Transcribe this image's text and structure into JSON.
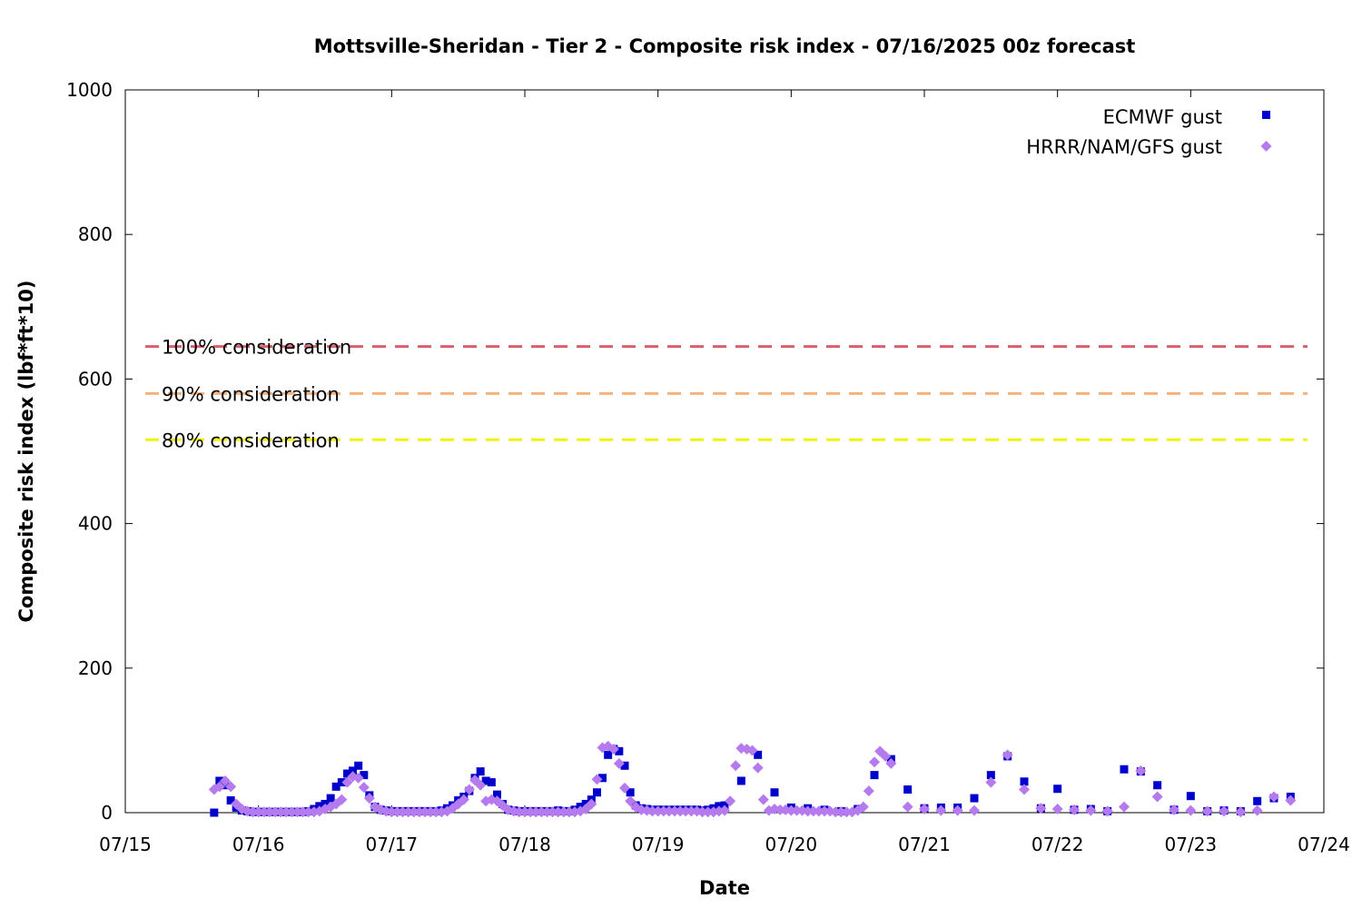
{
  "chart_data": {
    "type": "scatter",
    "title": "Mottsville-Sheridan - Tier 2 - Composite risk index - 07/16/2025 00z forecast",
    "xlabel": "Date",
    "ylabel": "Composite risk index (lbf*ft*10)",
    "x_tick_labels": [
      "07/15",
      "07/16",
      "07/17",
      "07/18",
      "07/19",
      "07/20",
      "07/21",
      "07/22",
      "07/23",
      "07/24"
    ],
    "x_tick_values": [
      0,
      1,
      2,
      3,
      4,
      5,
      6,
      7,
      8,
      9
    ],
    "x_values_meaning": "days from 07/15 00z",
    "xlim": [
      0,
      9
    ],
    "y_tick_labels": [
      "0",
      "200",
      "400",
      "600",
      "800",
      "1000"
    ],
    "y_tick_values": [
      0,
      200,
      400,
      600,
      800,
      1000
    ],
    "ylim": [
      0,
      1000
    ],
    "grid": false,
    "legend_position": "top-right",
    "thresholds": [
      {
        "label": "100% consideration",
        "value": 645,
        "color": "#d95f6e"
      },
      {
        "label": "90% consideration",
        "value": 580,
        "color": "#f5b27a"
      },
      {
        "label": "80% consideration",
        "value": 516,
        "color": "#f2f20a"
      }
    ],
    "series": [
      {
        "name": "ECMWF gust",
        "marker": "square",
        "color": "#0000cc",
        "points": [
          [
            0.667,
            0
          ],
          [
            0.708,
            44
          ],
          [
            0.75,
            38
          ],
          [
            0.792,
            17
          ],
          [
            0.833,
            7
          ],
          [
            0.875,
            3
          ],
          [
            0.917,
            2
          ],
          [
            0.958,
            1
          ],
          [
            1.0,
            1
          ],
          [
            1.042,
            1
          ],
          [
            1.083,
            1
          ],
          [
            1.125,
            1
          ],
          [
            1.167,
            1
          ],
          [
            1.208,
            1
          ],
          [
            1.25,
            1
          ],
          [
            1.292,
            1
          ],
          [
            1.333,
            1
          ],
          [
            1.375,
            2
          ],
          [
            1.417,
            5
          ],
          [
            1.458,
            9
          ],
          [
            1.5,
            12
          ],
          [
            1.542,
            20
          ],
          [
            1.583,
            36
          ],
          [
            1.625,
            42
          ],
          [
            1.667,
            54
          ],
          [
            1.708,
            58
          ],
          [
            1.75,
            65
          ],
          [
            1.792,
            52
          ],
          [
            1.833,
            24
          ],
          [
            1.875,
            8
          ],
          [
            1.917,
            4
          ],
          [
            1.958,
            3
          ],
          [
            2.0,
            2
          ],
          [
            2.042,
            2
          ],
          [
            2.083,
            2
          ],
          [
            2.125,
            2
          ],
          [
            2.167,
            2
          ],
          [
            2.208,
            2
          ],
          [
            2.25,
            2
          ],
          [
            2.292,
            2
          ],
          [
            2.333,
            2
          ],
          [
            2.375,
            3
          ],
          [
            2.417,
            6
          ],
          [
            2.458,
            10
          ],
          [
            2.5,
            17
          ],
          [
            2.542,
            22
          ],
          [
            2.583,
            30
          ],
          [
            2.625,
            48
          ],
          [
            2.667,
            57
          ],
          [
            2.708,
            44
          ],
          [
            2.75,
            42
          ],
          [
            2.792,
            25
          ],
          [
            2.833,
            12
          ],
          [
            2.875,
            4
          ],
          [
            2.917,
            3
          ],
          [
            2.958,
            2
          ],
          [
            3.0,
            2
          ],
          [
            3.042,
            2
          ],
          [
            3.083,
            2
          ],
          [
            3.125,
            2
          ],
          [
            3.167,
            2
          ],
          [
            3.208,
            2
          ],
          [
            3.25,
            3
          ],
          [
            3.292,
            2
          ],
          [
            3.333,
            2
          ],
          [
            3.375,
            4
          ],
          [
            3.417,
            8
          ],
          [
            3.458,
            12
          ],
          [
            3.5,
            18
          ],
          [
            3.542,
            28
          ],
          [
            3.583,
            48
          ],
          [
            3.625,
            80
          ],
          [
            3.667,
            88
          ],
          [
            3.708,
            85
          ],
          [
            3.75,
            65
          ],
          [
            3.792,
            28
          ],
          [
            3.833,
            10
          ],
          [
            3.875,
            6
          ],
          [
            3.917,
            5
          ],
          [
            3.958,
            4
          ],
          [
            4.0,
            4
          ],
          [
            4.042,
            4
          ],
          [
            4.083,
            4
          ],
          [
            4.125,
            4
          ],
          [
            4.167,
            4
          ],
          [
            4.208,
            4
          ],
          [
            4.25,
            4
          ],
          [
            4.292,
            4
          ],
          [
            4.333,
            3
          ],
          [
            4.375,
            4
          ],
          [
            4.417,
            6
          ],
          [
            4.458,
            9
          ],
          [
            4.5,
            10
          ],
          [
            4.625,
            44
          ],
          [
            4.75,
            80
          ],
          [
            4.875,
            28
          ],
          [
            5.0,
            7
          ],
          [
            5.125,
            6
          ],
          [
            5.25,
            4
          ],
          [
            5.375,
            2
          ],
          [
            5.5,
            5
          ],
          [
            5.625,
            52
          ],
          [
            5.75,
            74
          ],
          [
            5.875,
            32
          ],
          [
            6.0,
            6
          ],
          [
            6.125,
            7
          ],
          [
            6.25,
            7
          ],
          [
            6.375,
            20
          ],
          [
            6.5,
            52
          ],
          [
            6.625,
            78
          ],
          [
            6.75,
            43
          ],
          [
            6.875,
            6
          ],
          [
            7.0,
            33
          ],
          [
            7.125,
            4
          ],
          [
            7.25,
            5
          ],
          [
            7.375,
            2
          ],
          [
            7.5,
            60
          ],
          [
            7.625,
            57
          ],
          [
            7.75,
            38
          ],
          [
            7.875,
            4
          ],
          [
            8.0,
            23
          ],
          [
            8.125,
            2
          ],
          [
            8.25,
            3
          ],
          [
            8.375,
            2
          ],
          [
            8.5,
            16
          ],
          [
            8.625,
            20
          ],
          [
            8.75,
            22
          ]
        ]
      },
      {
        "name": "HRRR/NAM/GFS gust",
        "marker": "diamond",
        "color": "#b57bee",
        "points": [
          [
            0.667,
            32
          ],
          [
            0.708,
            36
          ],
          [
            0.75,
            44
          ],
          [
            0.792,
            36
          ],
          [
            0.833,
            12
          ],
          [
            0.875,
            5
          ],
          [
            0.917,
            2
          ],
          [
            0.958,
            1
          ],
          [
            1.0,
            1
          ],
          [
            1.042,
            1
          ],
          [
            1.083,
            1
          ],
          [
            1.125,
            1
          ],
          [
            1.167,
            1
          ],
          [
            1.208,
            1
          ],
          [
            1.25,
            1
          ],
          [
            1.292,
            1
          ],
          [
            1.333,
            1
          ],
          [
            1.375,
            1
          ],
          [
            1.417,
            1
          ],
          [
            1.458,
            2
          ],
          [
            1.5,
            5
          ],
          [
            1.542,
            8
          ],
          [
            1.583,
            12
          ],
          [
            1.625,
            18
          ],
          [
            1.667,
            42
          ],
          [
            1.708,
            50
          ],
          [
            1.75,
            48
          ],
          [
            1.792,
            35
          ],
          [
            1.833,
            20
          ],
          [
            1.875,
            8
          ],
          [
            1.917,
            4
          ],
          [
            1.958,
            2
          ],
          [
            2.0,
            1
          ],
          [
            2.042,
            1
          ],
          [
            2.083,
            1
          ],
          [
            2.125,
            1
          ],
          [
            2.167,
            1
          ],
          [
            2.208,
            1
          ],
          [
            2.25,
            1
          ],
          [
            2.292,
            1
          ],
          [
            2.333,
            1
          ],
          [
            2.375,
            1
          ],
          [
            2.417,
            2
          ],
          [
            2.458,
            6
          ],
          [
            2.5,
            12
          ],
          [
            2.542,
            18
          ],
          [
            2.583,
            32
          ],
          [
            2.625,
            45
          ],
          [
            2.667,
            38
          ],
          [
            2.708,
            16
          ],
          [
            2.75,
            18
          ],
          [
            2.792,
            16
          ],
          [
            2.833,
            10
          ],
          [
            2.875,
            4
          ],
          [
            2.917,
            2
          ],
          [
            2.958,
            1
          ],
          [
            3.0,
            1
          ],
          [
            3.042,
            1
          ],
          [
            3.083,
            1
          ],
          [
            3.125,
            1
          ],
          [
            3.167,
            1
          ],
          [
            3.208,
            1
          ],
          [
            3.25,
            1
          ],
          [
            3.292,
            1
          ],
          [
            3.333,
            1
          ],
          [
            3.375,
            1
          ],
          [
            3.417,
            2
          ],
          [
            3.458,
            5
          ],
          [
            3.5,
            12
          ],
          [
            3.542,
            46
          ],
          [
            3.583,
            90
          ],
          [
            3.625,
            92
          ],
          [
            3.667,
            88
          ],
          [
            3.708,
            68
          ],
          [
            3.75,
            34
          ],
          [
            3.792,
            16
          ],
          [
            3.833,
            8
          ],
          [
            3.875,
            4
          ],
          [
            3.917,
            3
          ],
          [
            3.958,
            2
          ],
          [
            4.0,
            2
          ],
          [
            4.042,
            2
          ],
          [
            4.083,
            2
          ],
          [
            4.125,
            2
          ],
          [
            4.167,
            2
          ],
          [
            4.208,
            2
          ],
          [
            4.25,
            2
          ],
          [
            4.292,
            2
          ],
          [
            4.333,
            1
          ],
          [
            4.375,
            1
          ],
          [
            4.417,
            1
          ],
          [
            4.458,
            2
          ],
          [
            4.5,
            3
          ],
          [
            4.542,
            16
          ],
          [
            4.583,
            65
          ],
          [
            4.625,
            89
          ],
          [
            4.667,
            88
          ],
          [
            4.708,
            86
          ],
          [
            4.75,
            62
          ],
          [
            4.792,
            18
          ],
          [
            4.833,
            3
          ],
          [
            4.875,
            5
          ],
          [
            4.917,
            4
          ],
          [
            4.958,
            4
          ],
          [
            5.0,
            3
          ],
          [
            5.042,
            3
          ],
          [
            5.083,
            3
          ],
          [
            5.125,
            2
          ],
          [
            5.167,
            2
          ],
          [
            5.208,
            2
          ],
          [
            5.25,
            2
          ],
          [
            5.292,
            2
          ],
          [
            5.333,
            1
          ],
          [
            5.375,
            1
          ],
          [
            5.417,
            1
          ],
          [
            5.458,
            1
          ],
          [
            5.5,
            3
          ],
          [
            5.542,
            8
          ],
          [
            5.583,
            30
          ],
          [
            5.625,
            70
          ],
          [
            5.667,
            85
          ],
          [
            5.708,
            78
          ],
          [
            5.75,
            68
          ],
          [
            5.875,
            8
          ],
          [
            6.0,
            5
          ],
          [
            6.125,
            3
          ],
          [
            6.25,
            3
          ],
          [
            6.375,
            3
          ],
          [
            6.5,
            42
          ],
          [
            6.625,
            80
          ],
          [
            6.75,
            32
          ],
          [
            6.875,
            6
          ],
          [
            7.0,
            5
          ],
          [
            7.125,
            4
          ],
          [
            7.25,
            3
          ],
          [
            7.375,
            2
          ],
          [
            7.5,
            8
          ],
          [
            7.625,
            58
          ],
          [
            7.75,
            22
          ],
          [
            7.875,
            4
          ],
          [
            8.0,
            3
          ],
          [
            8.125,
            2
          ],
          [
            8.25,
            2
          ],
          [
            8.375,
            1
          ],
          [
            8.5,
            3
          ],
          [
            8.625,
            22
          ],
          [
            8.75,
            17
          ]
        ]
      }
    ]
  }
}
